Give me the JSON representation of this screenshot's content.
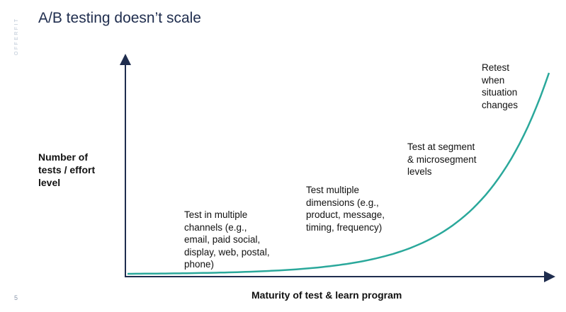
{
  "slide": {
    "title": "A/B testing doesn’t scale",
    "brand_text": "OFFERFIT",
    "page_number": "5"
  },
  "axes": {
    "y_label_lines": [
      "Number of",
      "tests / effort",
      "level"
    ],
    "x_label": "Maturity of test & learn program"
  },
  "stages": [
    {
      "lines": [
        "Test in multiple",
        "channels (e.g.,",
        "email, paid social,",
        "display, web, postal,",
        "phone)"
      ]
    },
    {
      "lines": [
        "Test multiple",
        "dimensions (e.g.,",
        "product, message,",
        "timing, frequency)"
      ]
    },
    {
      "lines": [
        "Test at segment",
        "& microsegment",
        "levels"
      ]
    },
    {
      "lines": [
        "Retest",
        "when",
        "situation",
        "changes"
      ]
    }
  ],
  "colors": {
    "title": "#1f2d4e",
    "axis": "#1f2d4e",
    "curve": "#2aa89b",
    "brand": "#b8c4d3",
    "label": "#111111"
  },
  "chart_data": {
    "type": "line",
    "shape": "exponential",
    "title": "",
    "xlabel": "Maturity of test & learn program",
    "ylabel": "Number of tests / effort level"
  }
}
